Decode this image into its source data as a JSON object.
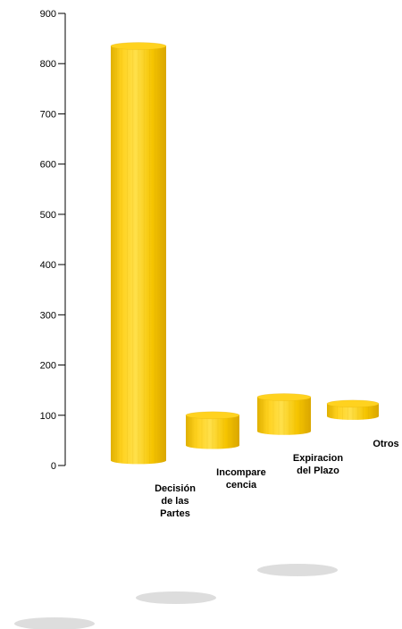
{
  "chart_data": {
    "type": "bar",
    "style": "3d-cylinder-floating",
    "categories": [
      "Decisión de las Partes",
      "Incomparecencia",
      "Expiracion del Plazo",
      "Otros"
    ],
    "category_label_lines": [
      [
        "Decisión",
        "de las",
        "Partes"
      ],
      [
        "Incompare",
        "cencia"
      ],
      [
        "Expiracion",
        "del Plazo"
      ],
      [
        "Otros"
      ]
    ],
    "values": [
      825,
      60,
      68,
      25
    ],
    "bar_base_values": [
      10,
      40,
      68,
      98
    ],
    "ylim": [
      0,
      900
    ],
    "yticks": [
      0,
      100,
      200,
      300,
      400,
      500,
      600,
      700,
      800,
      900
    ],
    "grid": false,
    "legend": "none",
    "colors": {
      "bar_fill": "#F5C400",
      "bar_light": "#FFE04A",
      "bar_dark": "#D9A600",
      "bar_top": "#FFD21F",
      "shadow": "#DDDDDD",
      "axis": "#000000"
    }
  }
}
